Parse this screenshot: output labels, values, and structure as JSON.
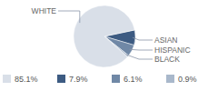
{
  "chart_data": {
    "type": "pie",
    "categories": [
      "WHITE",
      "ASIAN",
      "HISPANIC",
      "BLACK"
    ],
    "values": [
      85.1,
      7.9,
      6.1,
      0.9
    ],
    "value_labels": [
      "85.1%",
      "7.9%",
      "6.1%",
      "0.9%"
    ],
    "colors": [
      "#d9dfe8",
      "#3d5b82",
      "#7088a6",
      "#a9b8cb"
    ],
    "legend": "bottom"
  }
}
